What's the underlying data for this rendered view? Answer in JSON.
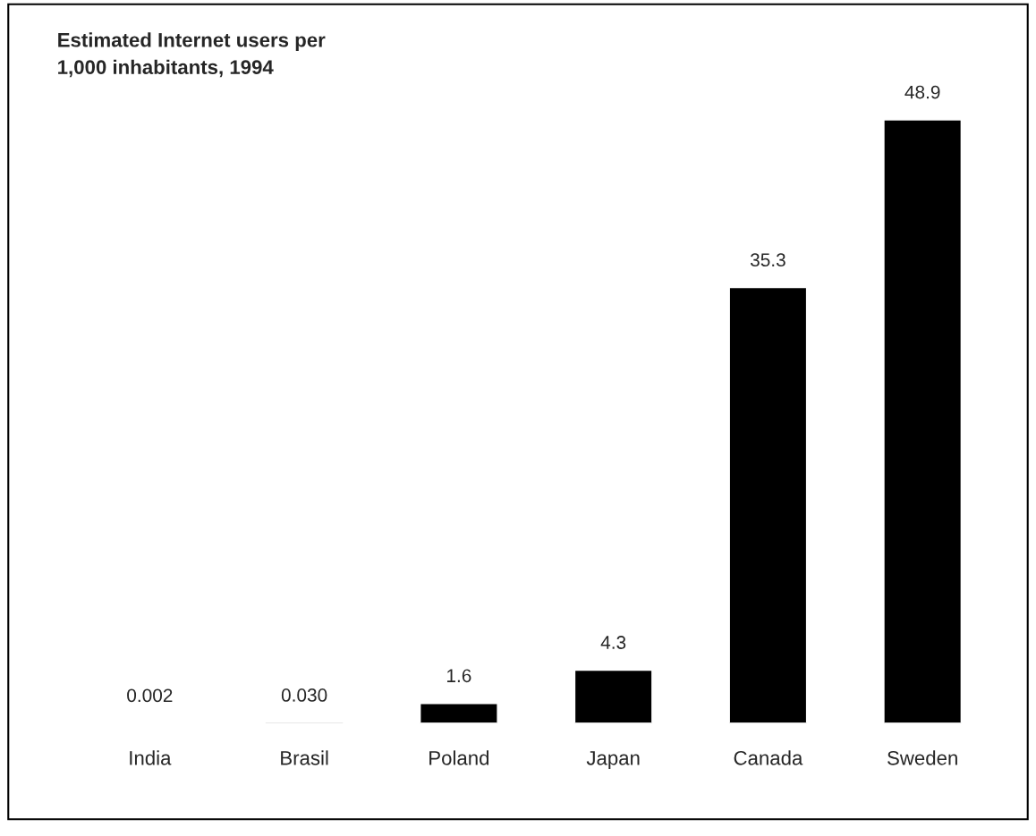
{
  "chart_data": {
    "type": "bar",
    "title": "Estimated Internet users per\n1,000 inhabitants, 1994",
    "categories": [
      "India",
      "Brasil",
      "Poland",
      "Japan",
      "Canada",
      "Sweden"
    ],
    "values": [
      0.002,
      0.03,
      1.6,
      4.3,
      35.3,
      48.9
    ],
    "value_labels": [
      "0.002",
      "0.030",
      "1.6",
      "4.3",
      "35.3",
      "48.9"
    ],
    "color": "#000000",
    "grid": false,
    "legend": false
  }
}
